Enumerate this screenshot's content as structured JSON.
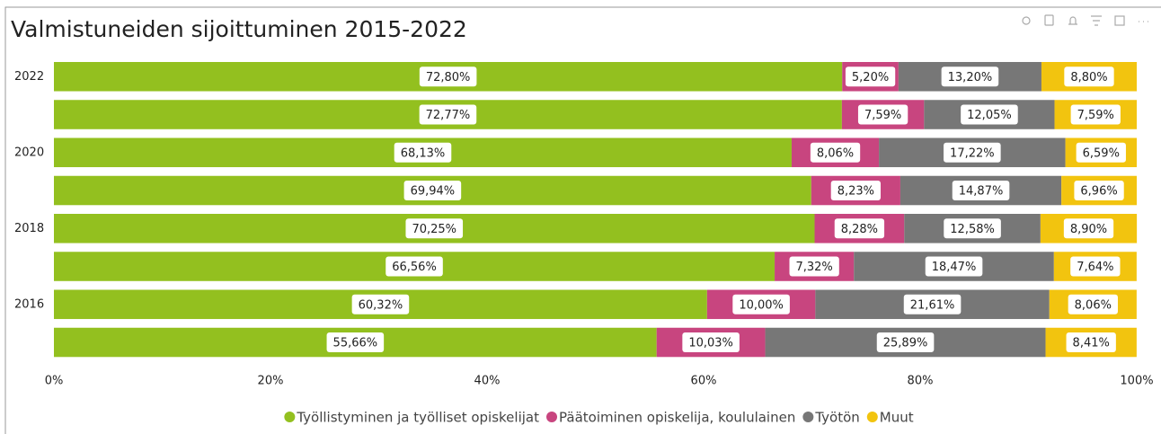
{
  "chart_data": {
    "type": "stacked-bar-horizontal",
    "title": "Valmistuneiden sijoittuminen 2015-2022",
    "categories": [
      "2022",
      null,
      "2020",
      null,
      "2018",
      null,
      "2016",
      null
    ],
    "series": [
      {
        "name": "Työllistyminen ja työlliset opiskelijat",
        "color": "#93c01f",
        "values": [
          72.8,
          72.77,
          68.13,
          69.94,
          70.25,
          66.56,
          60.32,
          55.66
        ],
        "value_labels": [
          "72,80%",
          "72,77%",
          "68,13%",
          "69,94%",
          "70,25%",
          "66,56%",
          "60,32%",
          "55,66%"
        ]
      },
      {
        "name": "Päätoiminen opiskelija, koululainen",
        "color": "#c8457f",
        "values": [
          5.2,
          7.59,
          8.06,
          8.23,
          8.28,
          7.32,
          10.0,
          10.03
        ],
        "value_labels": [
          "5,20%",
          "7,59%",
          "8,06%",
          "8,23%",
          "8,28%",
          "7,32%",
          "10,00%",
          "10,03%"
        ]
      },
      {
        "name": "Työtön",
        "color": "#777777",
        "values": [
          13.2,
          12.05,
          17.22,
          14.87,
          12.58,
          18.47,
          21.61,
          25.89
        ],
        "value_labels": [
          "13,20%",
          "12,05%",
          "17,22%",
          "14,87%",
          "12,58%",
          "18,47%",
          "21,61%",
          "25,89%"
        ]
      },
      {
        "name": "Muut",
        "color": "#f2c40f",
        "values": [
          8.8,
          7.59,
          6.59,
          6.96,
          8.9,
          7.64,
          8.06,
          8.41
        ],
        "value_labels": [
          "8,80%",
          "7,59%",
          "6,59%",
          "6,96%",
          "8,90%",
          "7,64%",
          "8,06%",
          "8,41%"
        ]
      }
    ],
    "xlim": [
      0,
      100
    ],
    "xticks": [
      {
        "value": 0,
        "label": "0%"
      },
      {
        "value": 20,
        "label": "20%"
      },
      {
        "value": 40,
        "label": "40%"
      },
      {
        "value": 60,
        "label": "60%"
      },
      {
        "value": 80,
        "label": "80%"
      },
      {
        "value": 100,
        "label": "100%"
      }
    ],
    "legend": "bottom"
  }
}
